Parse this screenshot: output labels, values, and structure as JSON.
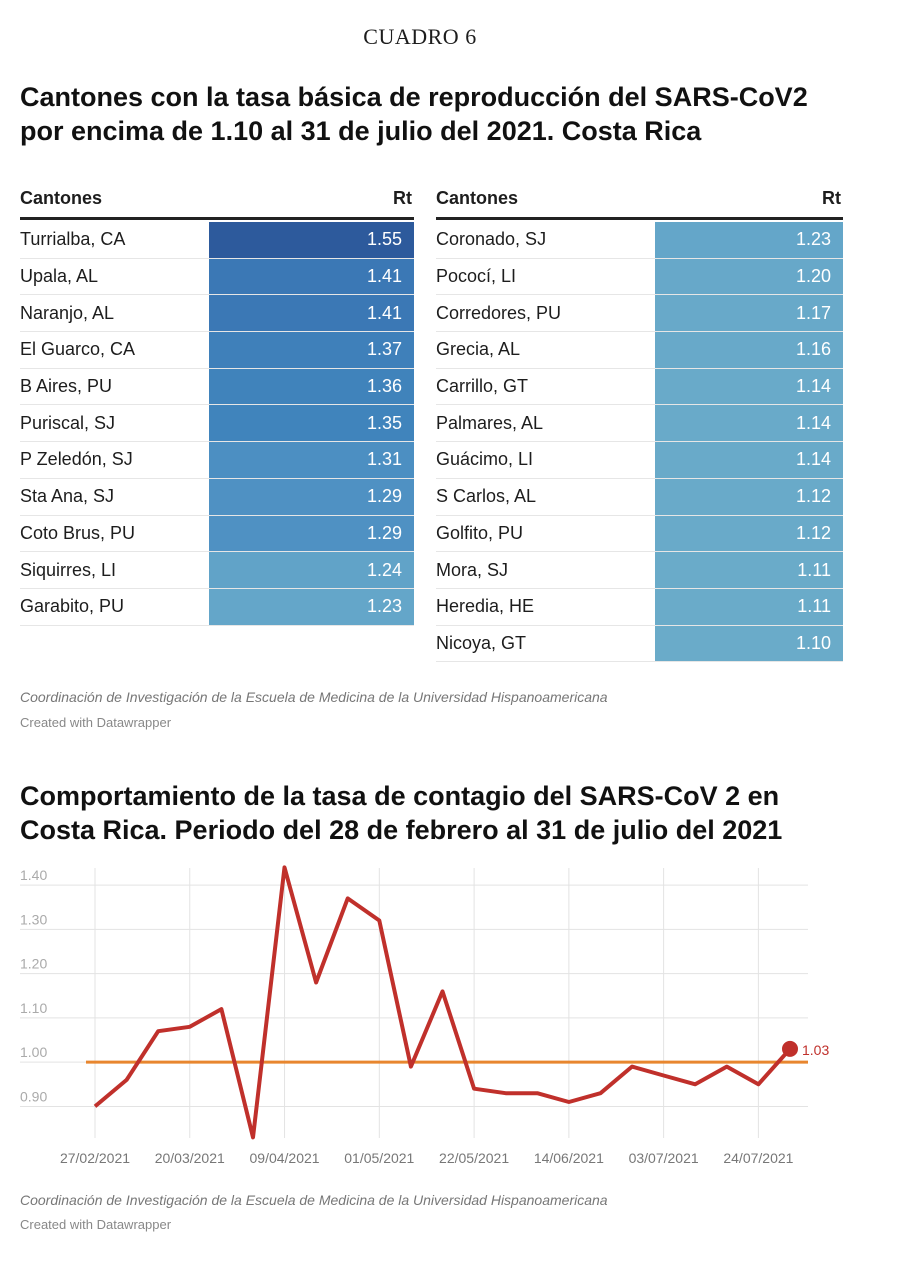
{
  "header": {
    "label": "CUADRO 6"
  },
  "table_section": {
    "title_line1": "Cantones con la tasa básica de reproducción del SARS-CoV2",
    "title_line2": "por encima de 1.10 al 31 de julio del 2021. Costa Rica",
    "col_name": "Cantones",
    "col_value": "Rt",
    "left_rows": [
      {
        "name": "Turrialba, CA",
        "rt": "1.55",
        "color": "#2d5a9c"
      },
      {
        "name": "Upala, AL",
        "rt": "1.41",
        "color": "#3b78b5"
      },
      {
        "name": "Naranjo, AL",
        "rt": "1.41",
        "color": "#3b78b5"
      },
      {
        "name": "El Guarco, CA",
        "rt": "1.37",
        "color": "#3f80ba"
      },
      {
        "name": "B Aires, PU",
        "rt": "1.36",
        "color": "#4083bb"
      },
      {
        "name": "Puriscal, SJ",
        "rt": "1.35",
        "color": "#4084bc"
      },
      {
        "name": "P Zeledón, SJ",
        "rt": "1.31",
        "color": "#4c8fc2"
      },
      {
        "name": "Sta Ana, SJ",
        "rt": "1.29",
        "color": "#4f91c3"
      },
      {
        "name": "Coto Brus, PU",
        "rt": "1.29",
        "color": "#4f91c3"
      },
      {
        "name": "Siquirres, LI",
        "rt": "1.24",
        "color": "#61a3c8"
      },
      {
        "name": "Garabito, PU",
        "rt": "1.23",
        "color": "#64a6c9"
      }
    ],
    "right_rows": [
      {
        "name": "Coronado, SJ",
        "rt": "1.23",
        "color": "#64a6c9"
      },
      {
        "name": "Pococí, LI",
        "rt": "1.20",
        "color": "#67a8c9"
      },
      {
        "name": "Corredores, PU",
        "rt": "1.17",
        "color": "#68a9c9"
      },
      {
        "name": "Grecia, AL",
        "rt": "1.16",
        "color": "#68a9c9"
      },
      {
        "name": "Carrillo, GT",
        "rt": "1.14",
        "color": "#69aac9"
      },
      {
        "name": "Palmares, AL",
        "rt": "1.14",
        "color": "#69aac9"
      },
      {
        "name": "Guácimo, LI",
        "rt": "1.14",
        "color": "#69aac9"
      },
      {
        "name": "S Carlos, AL",
        "rt": "1.12",
        "color": "#69aac9"
      },
      {
        "name": "Golfito, PU",
        "rt": "1.12",
        "color": "#69aac9"
      },
      {
        "name": "Mora, SJ",
        "rt": "1.11",
        "color": "#6aabc9"
      },
      {
        "name": "Heredia, HE",
        "rt": "1.11",
        "color": "#6aabc9"
      },
      {
        "name": "Nicoya, GT",
        "rt": "1.10",
        "color": "#6aabc9"
      }
    ],
    "source": "Coordinación de Investigación de la Escuela de Medicina de la Universidad Hispanoamericana",
    "credit": "Created with Datawrapper"
  },
  "chart_section": {
    "title_line1": "Comportamiento de la tasa de contagio del SARS-CoV 2 en",
    "title_line2": "Costa Rica. Periodo del 28 de febrero al 31 de julio del 2021",
    "source": "Coordinación de Investigación de la Escuela de Medicina de la Universidad Hispanoamericana",
    "credit": "Created with Datawrapper"
  },
  "chart_data": {
    "type": "line",
    "title": "Comportamiento de la tasa de contagio del SARS-CoV 2 en Costa Rica. Periodo del 28 de febrero al 31 de julio del 2021",
    "xlabel": "",
    "ylabel": "",
    "ylim": [
      0.84,
      1.45
    ],
    "y_ticks": [
      "0.90",
      "1.00",
      "1.10",
      "1.20",
      "1.30",
      "1.40"
    ],
    "x_tick_labels": [
      "27/02/2021",
      "20/03/2021",
      "09/04/2021",
      "01/05/2021",
      "22/05/2021",
      "14/06/2021",
      "03/07/2021",
      "24/07/2021"
    ],
    "x_tick_index": [
      0,
      3,
      6,
      9,
      12,
      15,
      18,
      21
    ],
    "grid": true,
    "series": [
      {
        "color": "#c0302b",
        "x": [
          "27/02/2021",
          "06/03/2021",
          "13/03/2021",
          "20/03/2021",
          "27/03/2021",
          "02/04/2021",
          "09/04/2021",
          "16/04/2021",
          "23/04/2021",
          "01/05/2021",
          "08/05/2021",
          "15/05/2021",
          "22/05/2021",
          "29/05/2021",
          "05/06/2021",
          "14/06/2021",
          "21/06/2021",
          "28/06/2021",
          "03/07/2021",
          "10/07/2021",
          "17/07/2021",
          "24/07/2021",
          "31/07/2021"
        ],
        "values": [
          0.9,
          0.96,
          1.07,
          1.08,
          1.12,
          0.83,
          1.44,
          1.18,
          1.37,
          1.32,
          0.99,
          1.16,
          0.94,
          0.93,
          0.93,
          0.91,
          0.93,
          0.99,
          0.97,
          0.95,
          0.99,
          0.95,
          1.03
        ],
        "end_label": "1.03"
      }
    ],
    "reference_line": {
      "value": 1.0,
      "color": "#e8862f"
    }
  }
}
